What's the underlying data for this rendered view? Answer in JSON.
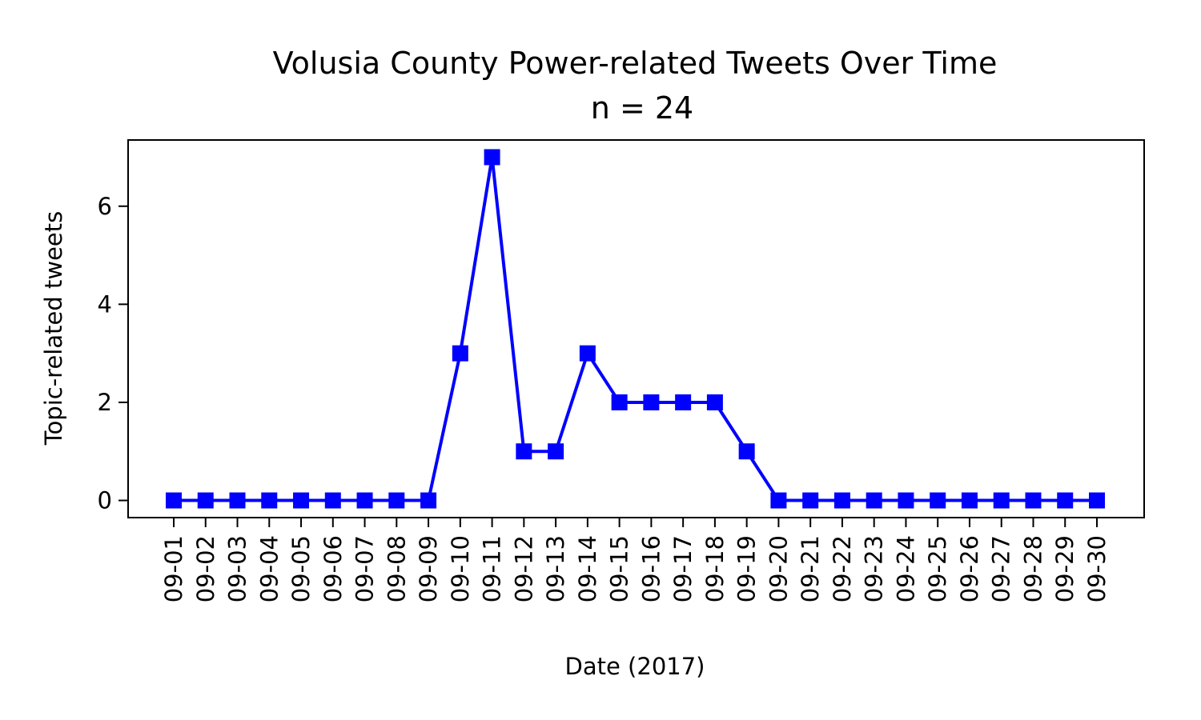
{
  "chart_data": {
    "type": "line",
    "title": "Volusia County Power-related Tweets Over Time",
    "subtitle": "n = 24",
    "xlabel": "Date (2017)",
    "ylabel": "Topic-related tweets",
    "categories": [
      "09-01",
      "09-02",
      "09-03",
      "09-04",
      "09-05",
      "09-06",
      "09-07",
      "09-08",
      "09-09",
      "09-10",
      "09-11",
      "09-12",
      "09-13",
      "09-14",
      "09-15",
      "09-16",
      "09-17",
      "09-18",
      "09-19",
      "09-20",
      "09-21",
      "09-22",
      "09-23",
      "09-24",
      "09-25",
      "09-26",
      "09-27",
      "09-28",
      "09-29",
      "09-30"
    ],
    "values": [
      0,
      0,
      0,
      0,
      0,
      0,
      0,
      0,
      0,
      3,
      7,
      1,
      1,
      3,
      2,
      2,
      2,
      2,
      1,
      0,
      0,
      0,
      0,
      0,
      0,
      0,
      0,
      0,
      0,
      0
    ],
    "ylim": [
      -0.35,
      7.35
    ],
    "yticks": [
      0,
      2,
      4,
      6
    ],
    "yticklabels": [
      "0",
      "2",
      "4",
      "6"
    ],
    "series_color": "#0000ff",
    "marker": "square",
    "grid": false,
    "legend": false
  }
}
